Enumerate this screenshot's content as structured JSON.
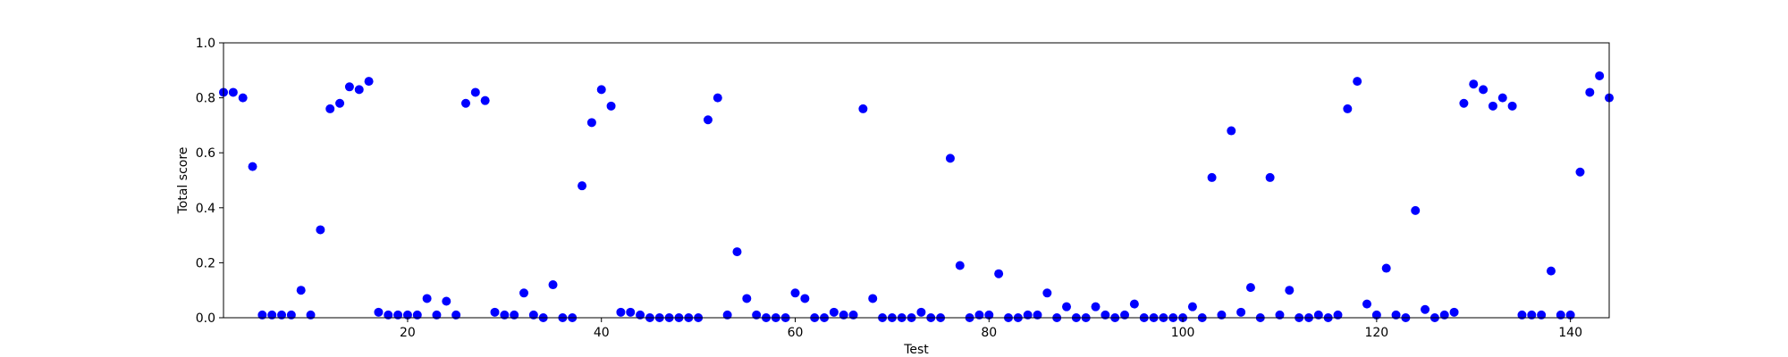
{
  "colors": {
    "marker": "#0000ff",
    "axis": "#000000",
    "background": "#ffffff"
  },
  "chart_data": {
    "type": "scatter",
    "title": "",
    "xlabel": "Test",
    "ylabel": "Total score",
    "xlim": [
      1,
      144
    ],
    "ylim": [
      0,
      1.0
    ],
    "x_ticks": [
      {
        "value": 20,
        "label": "20"
      },
      {
        "value": 40,
        "label": "40"
      },
      {
        "value": 60,
        "label": "60"
      },
      {
        "value": 80,
        "label": "80"
      },
      {
        "value": 100,
        "label": "100"
      },
      {
        "value": 120,
        "label": "120"
      },
      {
        "value": 140,
        "label": "140"
      }
    ],
    "y_ticks": [
      {
        "value": 0.0,
        "label": "0.0"
      },
      {
        "value": 0.2,
        "label": "0.2"
      },
      {
        "value": 0.4,
        "label": "0.4"
      },
      {
        "value": 0.6,
        "label": "0.6"
      },
      {
        "value": 0.8,
        "label": "0.8"
      },
      {
        "value": 1.0,
        "label": "1.0"
      }
    ],
    "grid": false,
    "legend": null,
    "series": [
      {
        "marker": "circle",
        "color": "#0000ff",
        "x": [
          1,
          2,
          3,
          4,
          5,
          6,
          7,
          8,
          9,
          10,
          11,
          12,
          13,
          14,
          15,
          16,
          17,
          18,
          19,
          20,
          21,
          22,
          23,
          24,
          25,
          26,
          27,
          28,
          29,
          30,
          31,
          32,
          33,
          34,
          35,
          36,
          37,
          38,
          39,
          40,
          41,
          42,
          43,
          44,
          45,
          46,
          47,
          48,
          49,
          50,
          51,
          52,
          53,
          54,
          55,
          56,
          57,
          58,
          59,
          60,
          61,
          62,
          63,
          64,
          65,
          66,
          67,
          68,
          69,
          70,
          71,
          72,
          73,
          74,
          75,
          76,
          77,
          78,
          79,
          80,
          81,
          82,
          83,
          84,
          85,
          86,
          87,
          88,
          89,
          90,
          91,
          92,
          93,
          94,
          95,
          96,
          97,
          98,
          99,
          100,
          101,
          102,
          103,
          104,
          105,
          106,
          107,
          108,
          109,
          110,
          111,
          112,
          113,
          114,
          115,
          116,
          117,
          118,
          119,
          120,
          121,
          122,
          123,
          124,
          125,
          126,
          127,
          128,
          129,
          130,
          131,
          132,
          133,
          134,
          135,
          136,
          137,
          138,
          139,
          140,
          141,
          142,
          143,
          144
        ],
        "y": [
          0.82,
          0.82,
          0.8,
          0.55,
          0.01,
          0.01,
          0.01,
          0.01,
          0.1,
          0.01,
          0.32,
          0.76,
          0.78,
          0.84,
          0.83,
          0.86,
          0.02,
          0.01,
          0.01,
          0.01,
          0.01,
          0.07,
          0.01,
          0.06,
          0.01,
          0.78,
          0.82,
          0.79,
          0.02,
          0.01,
          0.01,
          0.09,
          0.01,
          0.0,
          0.12,
          0.0,
          0.0,
          0.48,
          0.71,
          0.83,
          0.77,
          0.02,
          0.02,
          0.01,
          0.0,
          0.0,
          0.0,
          0.0,
          0.0,
          0.0,
          0.72,
          0.8,
          0.01,
          0.24,
          0.07,
          0.01,
          0.0,
          0.0,
          0.0,
          0.09,
          0.07,
          0.0,
          0.0,
          0.02,
          0.01,
          0.01,
          0.76,
          0.07,
          0.0,
          0.0,
          0.0,
          0.0,
          0.02,
          0.0,
          0.0,
          0.58,
          0.19,
          0.0,
          0.01,
          0.01,
          0.16,
          0.0,
          0.0,
          0.01,
          0.01,
          0.09,
          0.0,
          0.04,
          0.0,
          0.0,
          0.04,
          0.01,
          0.0,
          0.01,
          0.05,
          0.0,
          0.0,
          0.0,
          0.0,
          0.0,
          0.04,
          0.0,
          0.51,
          0.01,
          0.68,
          0.02,
          0.11,
          0.0,
          0.51,
          0.01,
          0.1,
          0.0,
          0.0,
          0.01,
          0.0,
          0.01,
          0.76,
          0.86,
          0.05,
          0.01,
          0.18,
          0.01,
          0.0,
          0.39,
          0.03,
          0.0,
          0.01,
          0.02,
          0.78,
          0.85,
          0.83,
          0.77,
          0.8,
          0.77,
          0.01,
          0.01,
          0.01,
          0.17,
          0.01,
          0.01,
          0.53,
          0.82,
          0.88,
          0.8
        ]
      }
    ]
  }
}
